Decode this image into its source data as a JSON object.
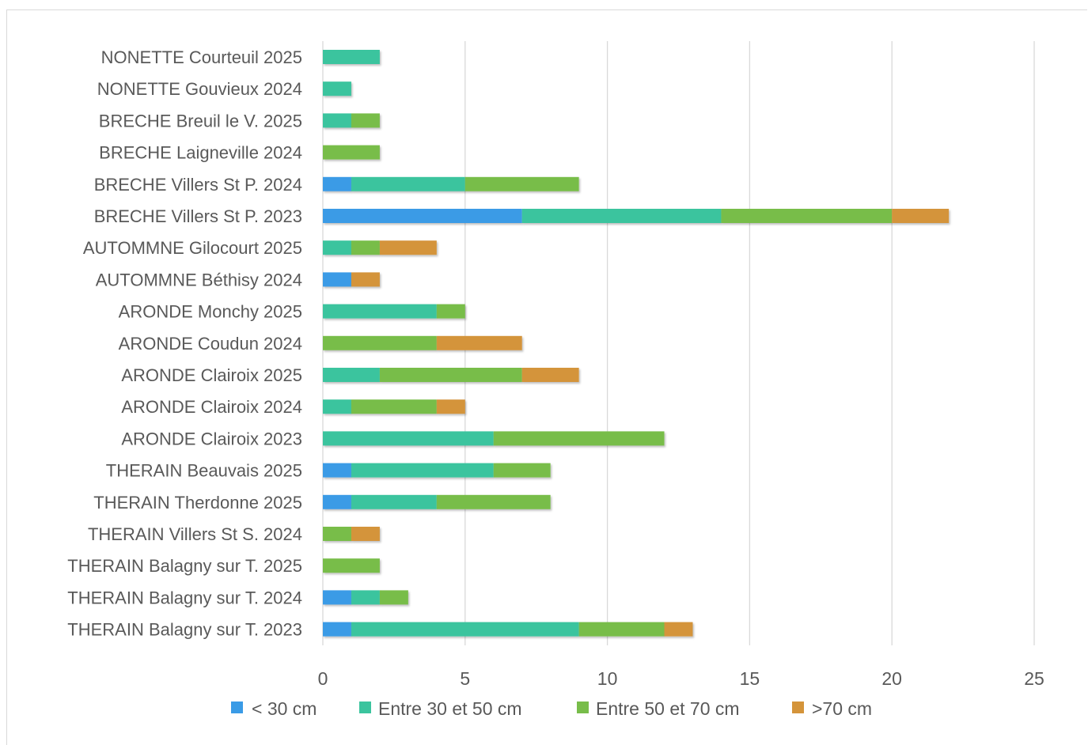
{
  "chart_data": {
    "type": "bar",
    "orientation": "horizontal",
    "stacked": true,
    "categories": [
      "NONETTE Courteuil 2025",
      "NONETTE Gouvieux 2024",
      "BRECHE Breuil le V. 2025",
      "BRECHE Laigneville 2024",
      "BRECHE Villers St P. 2024",
      "BRECHE Villers St P. 2023",
      "AUTOMMNE Gilocourt 2025",
      "AUTOMMNE Béthisy 2024",
      "ARONDE Monchy 2025",
      "ARONDE Coudun 2024",
      "ARONDE Clairoix 2025",
      "ARONDE Clairoix 2024",
      "ARONDE Clairoix 2023",
      "THERAIN Beauvais 2025",
      "THERAIN Therdonne 2025",
      "THERAIN Villers St S. 2024",
      "THERAIN Balagny sur T. 2025",
      "THERAIN Balagny sur T. 2024",
      "THERAIN Balagny sur T. 2023"
    ],
    "series": [
      {
        "name": "< 30 cm",
        "color": "#3a9be6",
        "values": [
          0,
          0,
          0,
          0,
          1,
          7,
          0,
          1,
          0,
          0,
          0,
          0,
          0,
          1,
          1,
          0,
          0,
          1,
          1
        ]
      },
      {
        "name": "Entre 30 et 50 cm",
        "color": "#3bc49e",
        "values": [
          2,
          1,
          1,
          0,
          4,
          7,
          1,
          0,
          4,
          0,
          2,
          1,
          6,
          5,
          3,
          0,
          0,
          1,
          8
        ]
      },
      {
        "name": "Entre 50 et 70 cm",
        "color": "#78bd4a",
        "values": [
          0,
          0,
          1,
          2,
          4,
          6,
          1,
          0,
          1,
          4,
          5,
          3,
          6,
          2,
          4,
          1,
          2,
          1,
          3
        ]
      },
      {
        "name": ">70 cm",
        "color": "#d4943a",
        "values": [
          0,
          0,
          0,
          0,
          0,
          2,
          2,
          1,
          0,
          3,
          2,
          1,
          0,
          0,
          0,
          1,
          0,
          0,
          1
        ]
      }
    ],
    "x_ticks": [
      "0",
      "5",
      "10",
      "15",
      "20",
      "25"
    ],
    "xlim": [
      0,
      25
    ],
    "grid": "vertical",
    "legend_position": "bottom",
    "title": "",
    "xlabel": "",
    "ylabel": ""
  }
}
